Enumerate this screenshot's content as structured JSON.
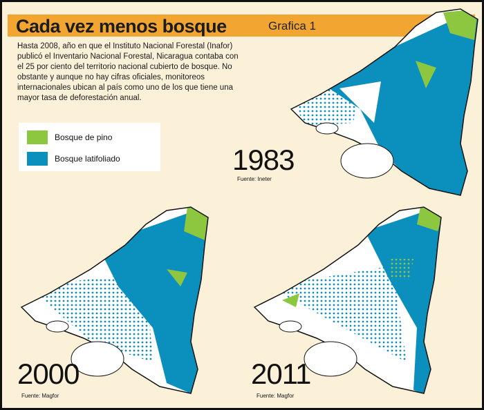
{
  "header": {
    "title": "Cada vez menos bosque",
    "subtitle": "Grafica 1"
  },
  "intro": "Hasta 2008, año en que el Instituto Nacional Forestal (Inafor) publicó el Inventario Nacional Forestal, Nicaragua contaba con el 25 por ciento del territorio nacional cubierto de bosque. No obstante y aunque no hay cifras oficiales, monitoreos internacionales ubican al país como uno de los que tiene una mayor tasa de deforestación anual.",
  "legend": [
    {
      "label": "Bosque de pino",
      "color": "#8dc63f"
    },
    {
      "label": "Bosque latifoliado",
      "color": "#0b8fbd"
    }
  ],
  "maps": [
    {
      "year": "1983",
      "source": "Fuente: Ineter"
    },
    {
      "year": "2000",
      "source": "Fuente: Magfor"
    },
    {
      "year": "2011",
      "source": "Fuente: Magfor"
    }
  ]
}
